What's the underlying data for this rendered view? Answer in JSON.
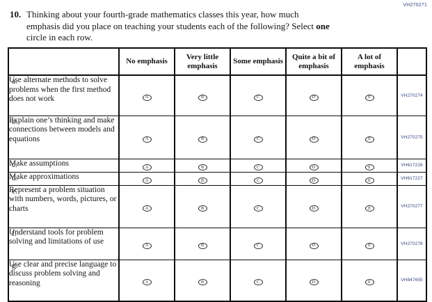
{
  "page": {
    "top_code": "VH270271"
  },
  "question": {
    "number": "10.",
    "line1": "Thinking about your fourth-grade mathematics classes this year, how much",
    "line2_before": "emphasis did you place on teaching your students each of the following? Select ",
    "line2_bold": "one",
    "line3": "circle in each row."
  },
  "table": {
    "column_headers": [
      "No emphasis",
      "Very little emphasis",
      "Some emphasis",
      "Quite a bit of emphasis",
      "A lot of emphasis"
    ],
    "option_letters": [
      "A",
      "B",
      "C",
      "D",
      "E"
    ],
    "rows": [
      {
        "letter": "a.",
        "label": "Use alternate methods to solve problems when the first method does not work",
        "code": "VH270274"
      },
      {
        "letter": "b.",
        "label": "Explain one’s thinking and make connections between models and equations",
        "code": "VH270275"
      },
      {
        "letter": "c.",
        "label": "Make assumptions",
        "code": "VH617226"
      },
      {
        "letter": "d.",
        "label": "Make approximations",
        "code": "VH617227"
      },
      {
        "letter": "e.",
        "label": "Represent a problem situation with numbers, words, pictures, or charts",
        "code": "VH270277"
      },
      {
        "letter": "f.",
        "label": "Understand tools for problem solving and limitations of use",
        "code": "VH270278"
      },
      {
        "letter": "g.",
        "label": "Use clear and precise language to discuss problem solving and reasoning",
        "code": "VH847655"
      }
    ]
  }
}
